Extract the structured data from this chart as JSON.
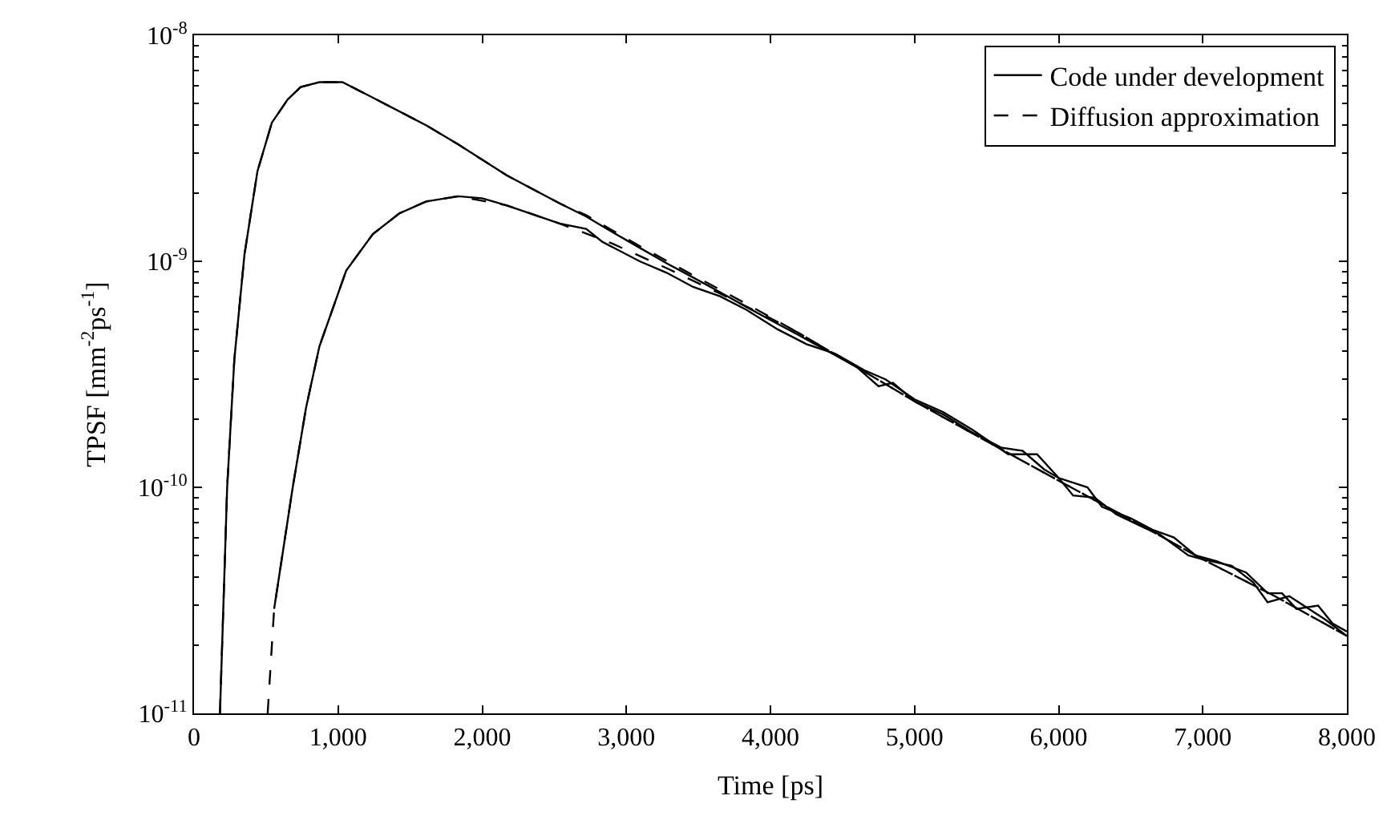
{
  "chart_data": {
    "type": "line",
    "xlabel": "Time [ps]",
    "ylabel": "TPSF [mm$^{-2}$ps$^{-1}$]",
    "log": "y",
    "legend": "top right",
    "marker": "none",
    "xlim": [
      0,
      8000
    ],
    "ylim": [
      1e-11,
      1e-08
    ],
    "xticks": [
      0,
      {
        "value": 1000,
        "label": "1,000"
      },
      {
        "value": 2000,
        "label": "2,000"
      },
      {
        "value": 3000,
        "label": "3,000"
      },
      {
        "value": 4000,
        "label": "4,000"
      },
      {
        "value": 5000,
        "label": "5,000"
      },
      {
        "value": 6000,
        "label": "6,000"
      },
      {
        "value": 7000,
        "label": "7,000"
      },
      {
        "value": 8000,
        "label": "8,000"
      }
    ],
    "yticks": [
      {
        "value": 1e-11,
        "label": "10$^{-11}$"
      },
      {
        "value": 1e-10,
        "label": "10$^{-10}$"
      },
      {
        "value": 1e-09,
        "label": "10$^{-9}$"
      },
      {
        "value": 1e-08,
        "label": "10$^{-8}$"
      }
    ],
    "series": [
      {
        "name": "Code under development",
        "color": "#000000",
        "line_style": "solid",
        "x": [
          180,
          200,
          230,
          260,
          280,
          350,
          440,
          540,
          650,
          740,
          870,
          1030,
          1240,
          1610,
          1830,
          2170,
          2540,
          2720,
          2900,
          3090,
          3280,
          3460,
          3650,
          3830,
          4000,
          4200,
          4400,
          4600,
          4750,
          4850,
          5000,
          5200,
          5400,
          5600,
          5750,
          5900,
          6000,
          6100,
          6250,
          6400,
          6600,
          6700,
          6900,
          7000,
          7200,
          7350,
          7450,
          7600,
          7700,
          7850,
          8000
        ],
        "values": [
          1e-11,
          2.5e-11,
          1e-10,
          2.2e-10,
          3.7e-10,
          1.07e-09,
          2.5e-09,
          4.1e-09,
          5.2e-09,
          5.9e-09,
          6.2e-09,
          6.2e-09,
          5.3e-09,
          4e-09,
          3.3e-09,
          2.4e-09,
          1.8e-09,
          1.58e-09,
          1.35e-09,
          1.15e-09,
          9.8e-10,
          8.5e-10,
          7.3e-10,
          6.3e-10,
          5.5e-10,
          4.7e-10,
          4e-10,
          3.4e-10,
          2.8e-10,
          2.9e-10,
          2.4e-10,
          2.1e-10,
          1.75e-10,
          1.5e-10,
          1.45e-10,
          1.2e-10,
          1.1e-10,
          9.2e-11,
          9e-11,
          7.6e-11,
          6.6e-11,
          6.2e-11,
          5e-11,
          4.8e-11,
          4.5e-11,
          3.8e-11,
          3.1e-11,
          3.3e-11,
          3e-11,
          2.6e-11,
          2.2e-11
        ]
      },
      {
        "name": "Diffusion approximation",
        "color": "#000000",
        "line_style": "dashed",
        "x": [
          180,
          200,
          230,
          260,
          280,
          350,
          440,
          540,
          650,
          740,
          870,
          1030,
          1240,
          1610,
          1830,
          2170,
          2540,
          2720,
          3090,
          3460,
          3830,
          4200,
          4600,
          5000,
          5500,
          6000,
          6500,
          7000,
          7500,
          8000
        ],
        "values": [
          1e-11,
          2.5e-11,
          1e-10,
          2.2e-10,
          3.7e-10,
          1.07e-09,
          2.5e-09,
          4.1e-09,
          5.2e-09,
          5.9e-09,
          6.2e-09,
          6.2e-09,
          5.3e-09,
          4e-09,
          3.3e-09,
          2.4e-09,
          1.8e-09,
          1.6e-09,
          1.17e-09,
          8.7e-10,
          6.5e-10,
          4.8e-10,
          3.4e-10,
          2.4e-10,
          1.6e-10,
          1.07e-10,
          7.2e-11,
          4.8e-11,
          3.3e-11,
          2.2e-11
        ]
      },
      {
        "color": "#000000",
        "line_style": "solid",
        "x": [
          556,
          685,
          778,
          870,
          1056,
          1241,
          1426,
          1611,
          1833,
          2000,
          2167,
          2537,
          2722,
          2833,
          3093,
          3280,
          3463,
          3650,
          3833,
          4050,
          4250,
          4450,
          4650,
          4800,
          5000,
          5200,
          5400,
          5650,
          5850,
          6000,
          6200,
          6300,
          6500,
          6650,
          6800,
          6950,
          7100,
          7300,
          7450,
          7550,
          7650,
          7800,
          7900,
          8000
        ],
        "values": [
          2.9e-11,
          1e-10,
          2.26e-10,
          4.2e-10,
          9.1e-10,
          1.32e-09,
          1.63e-09,
          1.84e-09,
          1.94e-09,
          1.9e-09,
          1.77e-09,
          1.47e-09,
          1.39e-09,
          1.22e-09,
          1e-09,
          8.9e-10,
          7.7e-10,
          7e-10,
          6.1e-10,
          5e-10,
          4.3e-10,
          3.9e-10,
          3.3e-10,
          3e-10,
          2.45e-10,
          2.15e-10,
          1.8e-10,
          1.4e-10,
          1.4e-10,
          1.1e-10,
          1e-10,
          8.2e-11,
          7.3e-11,
          6.5e-11,
          6e-11,
          5e-11,
          4.7e-11,
          4.2e-11,
          3.4e-11,
          3.4e-11,
          2.9e-11,
          3e-11,
          2.5e-11,
          2.3e-11
        ]
      },
      {
        "color": "#000000",
        "line_style": "dashed",
        "x": [
          511,
          556,
          685,
          778,
          870,
          1056,
          1241,
          1426,
          1611,
          1833,
          2167,
          2537,
          2900,
          3300,
          3650,
          4000,
          4200,
          4600,
          5000,
          5500,
          6000,
          6500,
          7000,
          7500,
          8000
        ],
        "values": [
          1e-11,
          2.9e-11,
          1e-10,
          2.26e-10,
          4.2e-10,
          9.1e-10,
          1.32e-09,
          1.63e-09,
          1.84e-09,
          1.94e-09,
          1.77e-09,
          1.47e-09,
          1.2e-09,
          9.2e-10,
          7.2e-10,
          5.6e-10,
          4.8e-10,
          3.4e-10,
          2.4e-10,
          1.6e-10,
          1.07e-10,
          7.2e-11,
          4.8e-11,
          3.3e-11,
          2.2e-11
        ]
      }
    ]
  }
}
